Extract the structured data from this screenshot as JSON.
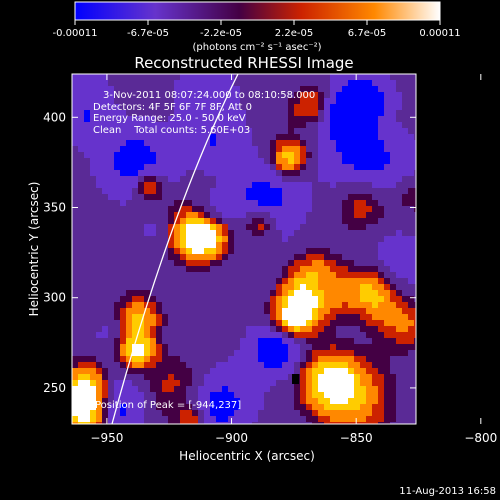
{
  "colorbar": {
    "ticks": [
      "-0.00011",
      "-6.7e-05",
      "-2.2e-05",
      "2.2e-05",
      "6.7e-05",
      "0.00011"
    ],
    "unit_label": "(photons cm⁻² s⁻¹ asec⁻²)"
  },
  "chart_data": {
    "type": "heatmap",
    "title": "Reconstructed RHESSI Image",
    "xlabel": "Heliocentric X (arcsec)",
    "ylabel": "Heliocentric Y (arcsec)",
    "xlim": [
      -962,
      -928
    ],
    "ylim": [
      230,
      424
    ],
    "x_ticks": [
      -950,
      -900,
      -850,
      -800
    ],
    "x_tick_labels": [
      "−950",
      "−900",
      "−850",
      "−800"
    ],
    "y_ticks": [
      250,
      300,
      350,
      400
    ],
    "y_tick_labels": [
      "250",
      "300",
      "350",
      "400"
    ],
    "value_range": [
      -0.00011,
      0.00011
    ],
    "colormap_stops": [
      "#0000ff",
      "#6633cc",
      "#440044",
      "#cc2200",
      "#ff8800",
      "#ffffff"
    ],
    "annotations": [
      "3-Nov-2011 08:07:24.000 to 08:10:58.000",
      "Detectors: 4F 5F 6F 7F 8F, Att 0",
      "Energy Range: 25.0 - 50.0 keV",
      "Clean    Total counts: 5.60E+03"
    ],
    "marker_label": "Position of Peak = [-944,237]",
    "peak_position": [
      -944,
      237
    ]
  },
  "footer": {
    "timestamp": "11-Aug-2013 16:58"
  }
}
